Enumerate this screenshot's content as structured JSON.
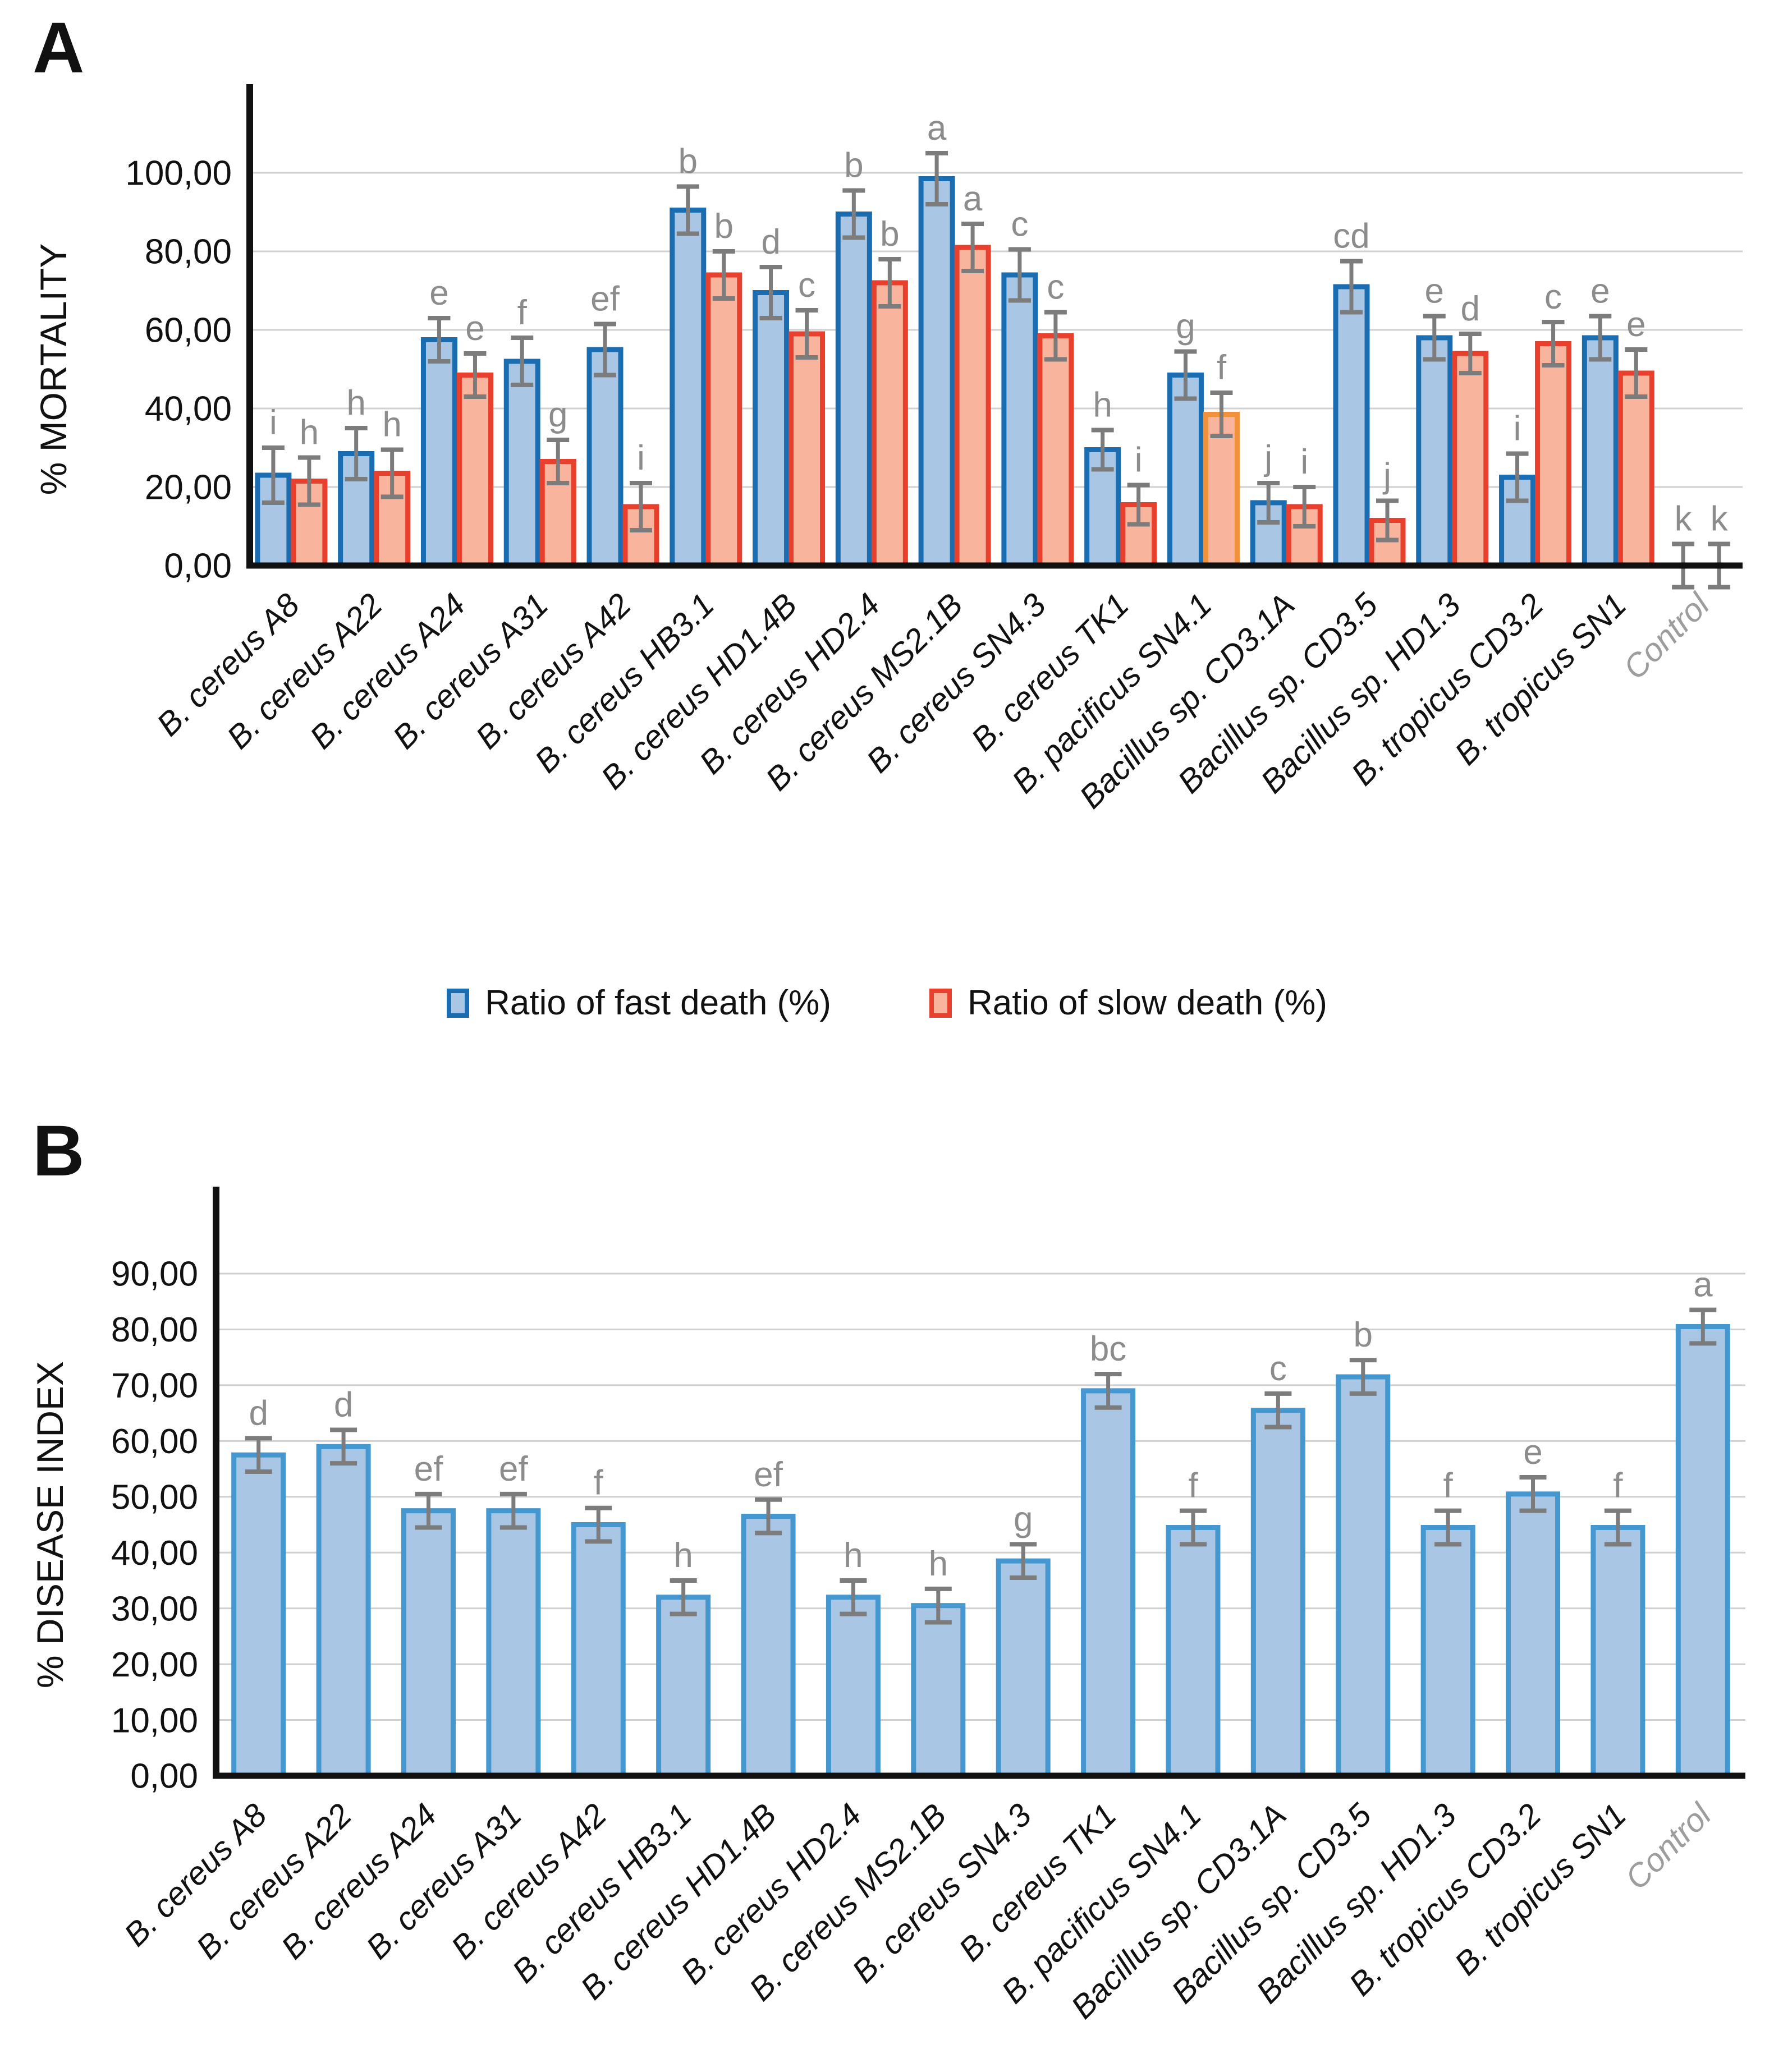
{
  "figure": {
    "panel_a_letter": "A",
    "panel_b_letter": "B"
  },
  "colors": {
    "fast_fill": "#A9C7E5",
    "fast_stroke": "#1A6DB0",
    "slow_fill": "#F9B49E",
    "slow_stroke": "#E8402C",
    "slow_stroke_orange_variant": "#F0913B",
    "disease_fill": "#A9C7E5",
    "disease_stroke": "#4497CF",
    "error_bar": "#7C7C7C",
    "gridline": "#D0D0D0",
    "axis": "#111111",
    "significance_letter": "#8C8C8C",
    "control_label": "#9D9D9D",
    "tick_text": "#111111"
  },
  "legend": {
    "items": [
      {
        "label": "Ratio of fast death (%)",
        "fill": "#A9C7E5",
        "stroke": "#1A6DB0"
      },
      {
        "label": "Ratio of slow death (%)",
        "fill": "#F9B49E",
        "stroke": "#E8402C"
      }
    ]
  },
  "chart_data": [
    {
      "id": "mortality",
      "panel": "A",
      "type": "bar",
      "title": "",
      "xlabel": "",
      "ylabel": "% MORTALITY",
      "ylim": [
        0,
        100
      ],
      "ytick_step": 20,
      "ytick_labels": [
        "0,00",
        "20,00",
        "40,00",
        "60,00",
        "80,00",
        "100,00"
      ],
      "grid": true,
      "legend_position": "below",
      "categories": [
        "B. cereus A8",
        "B. cereus A22",
        "B. cereus A24",
        "B. cereus A31",
        "B. cereus A42",
        "B. cereus HB3.1",
        "B. cereus HD1.4B",
        "B. cereus HD2.4",
        "B. cereus MS2.1B",
        "B. cereus SN4.3",
        "B. cereus TK1",
        "B. pacificus SN4.1",
        "Bacillus sp. CD3.1A",
        "Bacillus sp. CD3.5",
        "Bacillus sp. HD1.3",
        "B. tropicus CD3.2",
        "B. tropicus SN1",
        "Control"
      ],
      "muted_category_index": 17,
      "series": [
        {
          "name": "Ratio of fast death (%)",
          "fill": "#A9C7E5",
          "stroke": "#1A6DB0",
          "values": [
            23.0,
            28.5,
            57.5,
            52.0,
            55.0,
            90.5,
            69.5,
            89.5,
            98.5,
            74.0,
            29.5,
            48.5,
            16.0,
            71.0,
            58.0,
            22.5,
            58.0,
            0.0
          ],
          "errors": [
            7.0,
            6.5,
            5.5,
            6.0,
            6.5,
            6.0,
            6.5,
            6.0,
            6.5,
            6.5,
            5.0,
            6.0,
            5.0,
            6.5,
            5.5,
            6.0,
            5.5,
            5.5
          ],
          "letters": [
            "i",
            "h",
            "e",
            "f",
            "ef",
            "b",
            "d",
            "b",
            "a",
            "c",
            "h",
            "g",
            "j",
            "cd",
            "e",
            "i",
            "e",
            "k"
          ]
        },
        {
          "name": "Ratio of slow death (%)",
          "fill": "#F9B49E",
          "stroke": "#E8402C",
          "stroke_overrides": {
            "11": "#F0913B"
          },
          "values": [
            21.5,
            23.5,
            48.5,
            26.5,
            15.0,
            74.0,
            59.0,
            72.0,
            81.0,
            58.5,
            15.5,
            38.5,
            15.0,
            11.5,
            54.0,
            56.5,
            49.0,
            0.0
          ],
          "errors": [
            6.0,
            6.0,
            5.5,
            5.5,
            6.0,
            6.0,
            6.0,
            6.0,
            6.0,
            6.0,
            5.0,
            5.5,
            5.0,
            5.0,
            5.0,
            5.5,
            6.0,
            5.5
          ],
          "letters": [
            "h",
            "h",
            "e",
            "g",
            "i",
            "b",
            "c",
            "b",
            "a",
            "c",
            "i",
            "f",
            "i",
            "j",
            "d",
            "c",
            "e",
            "k"
          ]
        }
      ]
    },
    {
      "id": "disease_index",
      "panel": "B",
      "type": "bar",
      "title": "",
      "xlabel": "",
      "ylabel": "% DISEASE INDEX",
      "ylim": [
        0,
        90
      ],
      "ytick_step": 10,
      "ytick_labels": [
        "0,00",
        "10,00",
        "20,00",
        "30,00",
        "40,00",
        "50,00",
        "60,00",
        "70,00",
        "80,00",
        "90,00"
      ],
      "grid": true,
      "legend_position": "none",
      "categories": [
        "B. cereus A8",
        "B. cereus A22",
        "B. cereus A24",
        "B. cereus A31",
        "B. cereus A42",
        "B. cereus HB3.1",
        "B. cereus HD1.4B",
        "B. cereus HD2.4",
        "B. cereus MS2.1B",
        "B. cereus SN4.3",
        "B. cereus TK1",
        "B. pacificus SN4.1",
        "Bacillus sp. CD3.1A",
        "Bacillus sp. CD3.5",
        "Bacillus sp. HD1.3",
        "B. tropicus CD3.2",
        "B. tropicus SN1",
        "Control"
      ],
      "muted_category_index": 17,
      "series": [
        {
          "fill": "#A9C7E5",
          "stroke": "#4497CF",
          "values": [
            57.5,
            59.0,
            47.5,
            47.5,
            45.0,
            32.0,
            46.5,
            32.0,
            30.5,
            38.5,
            69.0,
            44.5,
            65.5,
            71.5,
            44.5,
            50.5,
            44.5,
            80.5
          ],
          "errors": [
            3.0,
            3.0,
            3.0,
            3.0,
            3.0,
            3.0,
            3.0,
            3.0,
            3.0,
            3.0,
            3.0,
            3.0,
            3.0,
            3.0,
            3.0,
            3.0,
            3.0,
            3.0
          ],
          "letters": [
            "d",
            "d",
            "ef",
            "ef",
            "f",
            "h",
            "ef",
            "h",
            "h",
            "g",
            "bc",
            "f",
            "c",
            "b",
            "f",
            "e",
            "f",
            "a"
          ]
        }
      ]
    }
  ]
}
